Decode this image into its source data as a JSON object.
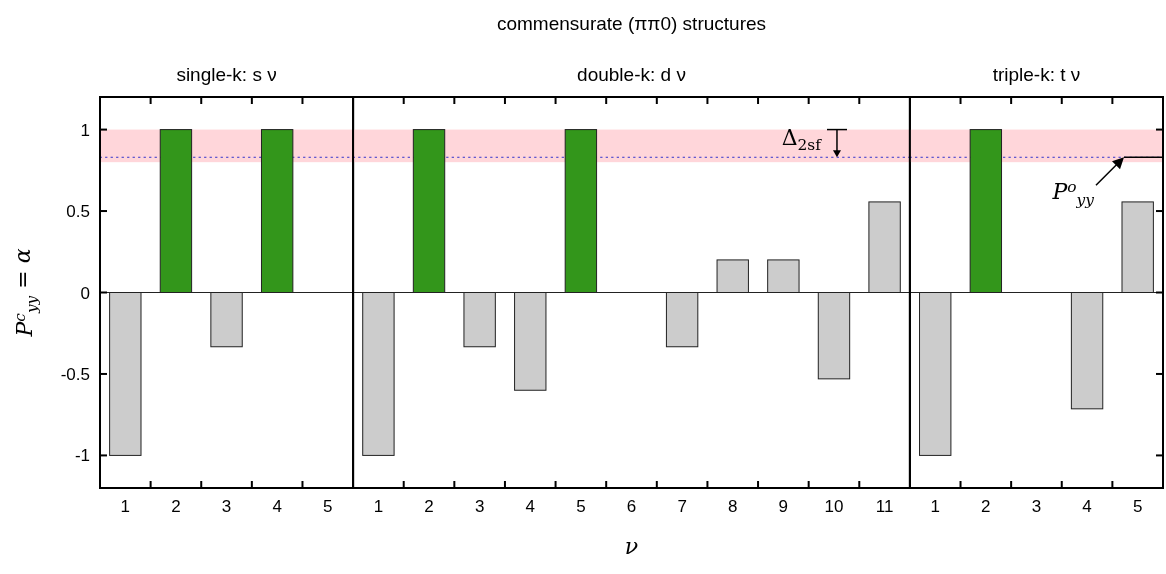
{
  "chart_data": [
    {
      "type": "bar",
      "title": "single-k: s ν",
      "ylabel": "P$^{c}$$_{yy}$ = α",
      "categories": [
        "1",
        "2",
        "3",
        "4",
        "5"
      ],
      "values": [
        -1,
        1,
        -0.333,
        1,
        0
      ],
      "colors": [
        "#cccccc",
        "#33961b",
        "#cccccc",
        "#33961b",
        "#cccccc"
      ],
      "ylim": [
        -1.2,
        1.2
      ],
      "yticks": [
        -1,
        -0.5,
        0,
        0.5,
        1
      ],
      "bands": [
        {
          "axis": "y",
          "from": 0.8,
          "to": 1,
          "color": "#ffd6da"
        }
      ],
      "ref_lines": [
        {
          "axis": "y",
          "value": 0.83,
          "color": "#3333cc",
          "line_style": "dotted"
        }
      ]
    },
    {
      "type": "bar",
      "title": "double-k: d ν",
      "xlabel": "ν",
      "categories": [
        "1",
        "2",
        "3",
        "4",
        "5",
        "6",
        "7",
        "8",
        "9",
        "10",
        "11"
      ],
      "values": [
        -1,
        1,
        -0.333,
        -0.6,
        1,
        0,
        -0.333,
        0.2,
        0.2,
        -0.53,
        0.556
      ],
      "colors": [
        "#cccccc",
        "#33961b",
        "#cccccc",
        "#cccccc",
        "#33961b",
        "#cccccc",
        "#cccccc",
        "#cccccc",
        "#cccccc",
        "#cccccc",
        "#cccccc"
      ],
      "ylim": [
        -1.2,
        1.2
      ],
      "tick_labels": "x",
      "bands": [
        {
          "axis": "y",
          "from": 0.8,
          "to": 1,
          "color": "#ffd6da"
        }
      ],
      "ref_lines": [
        {
          "axis": "y",
          "value": 0.83,
          "color": "#3333cc",
          "line_style": "dotted"
        }
      ],
      "annotations": [
        "commensurate (ππ0) structures",
        {
          "text": "Δ$_{2sf}$",
          "x": "10",
          "y": 1
        }
      ]
    },
    {
      "type": "bar",
      "title": "triple-k: t ν",
      "categories": [
        "1",
        "2",
        "3",
        "4",
        "5"
      ],
      "values": [
        -1,
        1,
        0,
        -0.714,
        0.556
      ],
      "colors": [
        "#cccccc",
        "#33961b",
        "#cccccc",
        "#cccccc",
        "#cccccc"
      ],
      "ylim": [
        -1.2,
        1.2
      ],
      "yticks": [
        -1,
        -0.5,
        0,
        0.5,
        1
      ],
      "tick_labels": "x",
      "bands": [
        {
          "axis": "y",
          "from": 0.8,
          "to": 1,
          "color": "#ffd6da"
        }
      ],
      "ref_lines": [
        {
          "axis": "y",
          "value": 0.83,
          "color": "#3333cc",
          "line_style": "dotted"
        }
      ],
      "annotations": [
        {
          "text": "P$^{o}$$_{yy}$",
          "x": "5",
          "y": 0.83
        }
      ]
    }
  ]
}
